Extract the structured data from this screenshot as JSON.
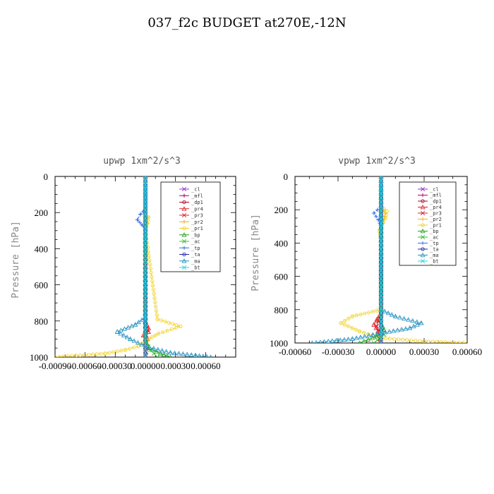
{
  "figure_title": "037_f2c  BUDGET at270E,-12N",
  "legend_labels": [
    "_cl",
    "_mfl",
    "_dp1",
    "_pr4",
    "_pr3",
    "_pr2",
    "_pr1",
    "_bp",
    "_ac",
    "_tp",
    "_ta",
    "_ma",
    "_bt"
  ],
  "chart_data": [
    {
      "type": "line",
      "title": "upwp   1xm^2/s^3",
      "ylabel": "Pressure [hPa]",
      "xlabel": "",
      "xlim": [
        -0.0009,
        0.0009
      ],
      "ylim": [
        1000,
        0
      ],
      "xticks": [
        "-0.00090",
        "-0.00060",
        "-0.00030",
        "0.00000",
        "0.00030",
        "0.00060"
      ],
      "xtick_values": [
        -0.0009,
        -0.0006,
        -0.0003,
        0,
        0.0003,
        0.0006
      ],
      "yticks": [
        "0",
        "200",
        "400",
        "600",
        "800",
        "1000"
      ],
      "ytick_values": [
        0,
        200,
        400,
        600,
        800,
        1000
      ],
      "legend_position": "top-right",
      "series": [
        {
          "name": "_cl",
          "color": "#9b30d0",
          "x": [
            0,
            0,
            0
          ],
          "y": [
            0,
            500,
            1000
          ]
        },
        {
          "name": "_mfl",
          "color": "#b0006e",
          "x": [
            0,
            0,
            0
          ],
          "y": [
            0,
            500,
            1000
          ]
        },
        {
          "name": "_dp1",
          "color": "#b00020",
          "x": [
            0,
            0,
            0
          ],
          "y": [
            0,
            500,
            1000
          ]
        },
        {
          "name": "_pr4",
          "color": "#e0202a",
          "x": [
            0,
            0,
            3e-05,
            3e-05,
            -2e-05,
            2e-05,
            0
          ],
          "y": [
            0,
            800,
            840,
            860,
            880,
            900,
            1000
          ]
        },
        {
          "name": "_pr3",
          "color": "#e0202a",
          "x": [
            0,
            0,
            2e-05,
            1e-05,
            0
          ],
          "y": [
            0,
            820,
            850,
            880,
            1000
          ]
        },
        {
          "name": "_pr2",
          "color": "#f0b020",
          "x": [
            0,
            0,
            2e-05,
            2e-05,
            0
          ],
          "y": [
            0,
            200,
            225,
            260,
            300
          ]
        },
        {
          "name": "_pr1",
          "color": "#f0d020",
          "x": [
            0,
            0,
            3e-05,
            2e-05,
            0,
            0.00012,
            0.00035,
            0.00013,
            0,
            -7e-05,
            -0.0002,
            -0.0004,
            -0.0009
          ],
          "y": [
            0,
            200,
            225,
            260,
            300,
            790,
            830,
            870,
            910,
            940,
            960,
            980,
            1000
          ]
        },
        {
          "name": "_bp",
          "color": "#20a020",
          "x": [
            0,
            0,
            3e-05,
            0.00015,
            0.00025
          ],
          "y": [
            0,
            900,
            950,
            980,
            1000
          ]
        },
        {
          "name": "_ac",
          "color": "#30c030",
          "x": [
            0,
            0,
            5e-05,
            0.00012
          ],
          "y": [
            0,
            920,
            960,
            1000
          ]
        },
        {
          "name": "_tp",
          "color": "#3070e0",
          "x": [
            0,
            0,
            -5e-05,
            -8e-05,
            -3e-05,
            0
          ],
          "y": [
            0,
            180,
            210,
            240,
            270,
            300
          ]
        },
        {
          "name": "_ta",
          "color": "#2020b0",
          "x": [
            0,
            0
          ],
          "y": [
            0,
            1000
          ]
        },
        {
          "name": "_ma",
          "color": "#2090c0",
          "x": [
            0,
            0,
            -0.0001,
            -0.00028,
            -0.00015,
            0,
            0.00025,
            0.0005,
            0.00065
          ],
          "y": [
            0,
            780,
            820,
            860,
            900,
            940,
            975,
            990,
            1000
          ]
        },
        {
          "name": "_bt",
          "color": "#20d8e8",
          "x": [
            0,
            0
          ],
          "y": [
            0,
            1000
          ]
        }
      ]
    },
    {
      "type": "line",
      "title": "vpwp   1xm^2/s^3",
      "ylabel": "Pressure [hPa]",
      "xlabel": "",
      "xlim": [
        -0.0006,
        0.0006
      ],
      "ylim": [
        1000,
        0
      ],
      "xticks": [
        "-0.00060",
        "-0.00030",
        "0.00000",
        "0.00030",
        "0.00060"
      ],
      "xtick_values": [
        -0.0006,
        -0.0003,
        0,
        0.0003,
        0.0006
      ],
      "yticks": [
        "0",
        "200",
        "400",
        "600",
        "800",
        "1000"
      ],
      "ytick_values": [
        0,
        200,
        400,
        600,
        800,
        1000
      ],
      "legend_position": "top-right",
      "series": [
        {
          "name": "_cl",
          "color": "#9b30d0",
          "x": [
            0,
            0,
            0
          ],
          "y": [
            0,
            500,
            1000
          ]
        },
        {
          "name": "_mfl",
          "color": "#b0006e",
          "x": [
            0,
            0,
            0
          ],
          "y": [
            0,
            500,
            1000
          ]
        },
        {
          "name": "_dp1",
          "color": "#b00020",
          "x": [
            0,
            0,
            0
          ],
          "y": [
            0,
            500,
            1000
          ]
        },
        {
          "name": "_pr4",
          "color": "#e0202a",
          "x": [
            0,
            0,
            -3e-05,
            -5e-05,
            -2e-05,
            0
          ],
          "y": [
            0,
            820,
            860,
            890,
            930,
            1000
          ]
        },
        {
          "name": "_pr3",
          "color": "#e0202a",
          "x": [
            0,
            0,
            -2e-05,
            -3e-05,
            0
          ],
          "y": [
            0,
            830,
            870,
            900,
            1000
          ]
        },
        {
          "name": "_pr2",
          "color": "#f0b020",
          "x": [
            0,
            0,
            3e-05,
            2e-05,
            -1e-05,
            0
          ],
          "y": [
            0,
            180,
            220,
            260,
            320,
            400
          ]
        },
        {
          "name": "_pr1",
          "color": "#f0d020",
          "x": [
            0,
            0,
            4e-05,
            3e-05,
            -1e-05,
            0,
            0,
            -0.0002,
            -0.00028,
            -0.00015,
            0,
            0.0003,
            0.0006
          ],
          "y": [
            0,
            180,
            210,
            250,
            330,
            380,
            800,
            840,
            880,
            930,
            970,
            990,
            1000
          ]
        },
        {
          "name": "_bp",
          "color": "#20a020",
          "x": [
            0,
            0,
            2e-05,
            -3e-05,
            -0.00015
          ],
          "y": [
            0,
            880,
            920,
            960,
            1000
          ]
        },
        {
          "name": "_ac",
          "color": "#30c030",
          "x": [
            0,
            0,
            2e-05,
            -5e-05
          ],
          "y": [
            0,
            900,
            950,
            1000
          ]
        },
        {
          "name": "_tp",
          "color": "#3070e0",
          "x": [
            0,
            0,
            -5e-05,
            -2e-05,
            0
          ],
          "y": [
            0,
            180,
            220,
            260,
            300
          ]
        },
        {
          "name": "_ta",
          "color": "#2020b0",
          "x": [
            0,
            0
          ],
          "y": [
            0,
            1000
          ]
        },
        {
          "name": "_ma",
          "color": "#2090c0",
          "x": [
            0,
            0,
            0.0001,
            0.00028,
            0.0002,
            0,
            -0.0002,
            -0.00048
          ],
          "y": [
            0,
            800,
            840,
            880,
            910,
            940,
            975,
            1000
          ]
        },
        {
          "name": "_bt",
          "color": "#20d8e8",
          "x": [
            0,
            0
          ],
          "y": [
            0,
            1000
          ]
        }
      ]
    }
  ]
}
